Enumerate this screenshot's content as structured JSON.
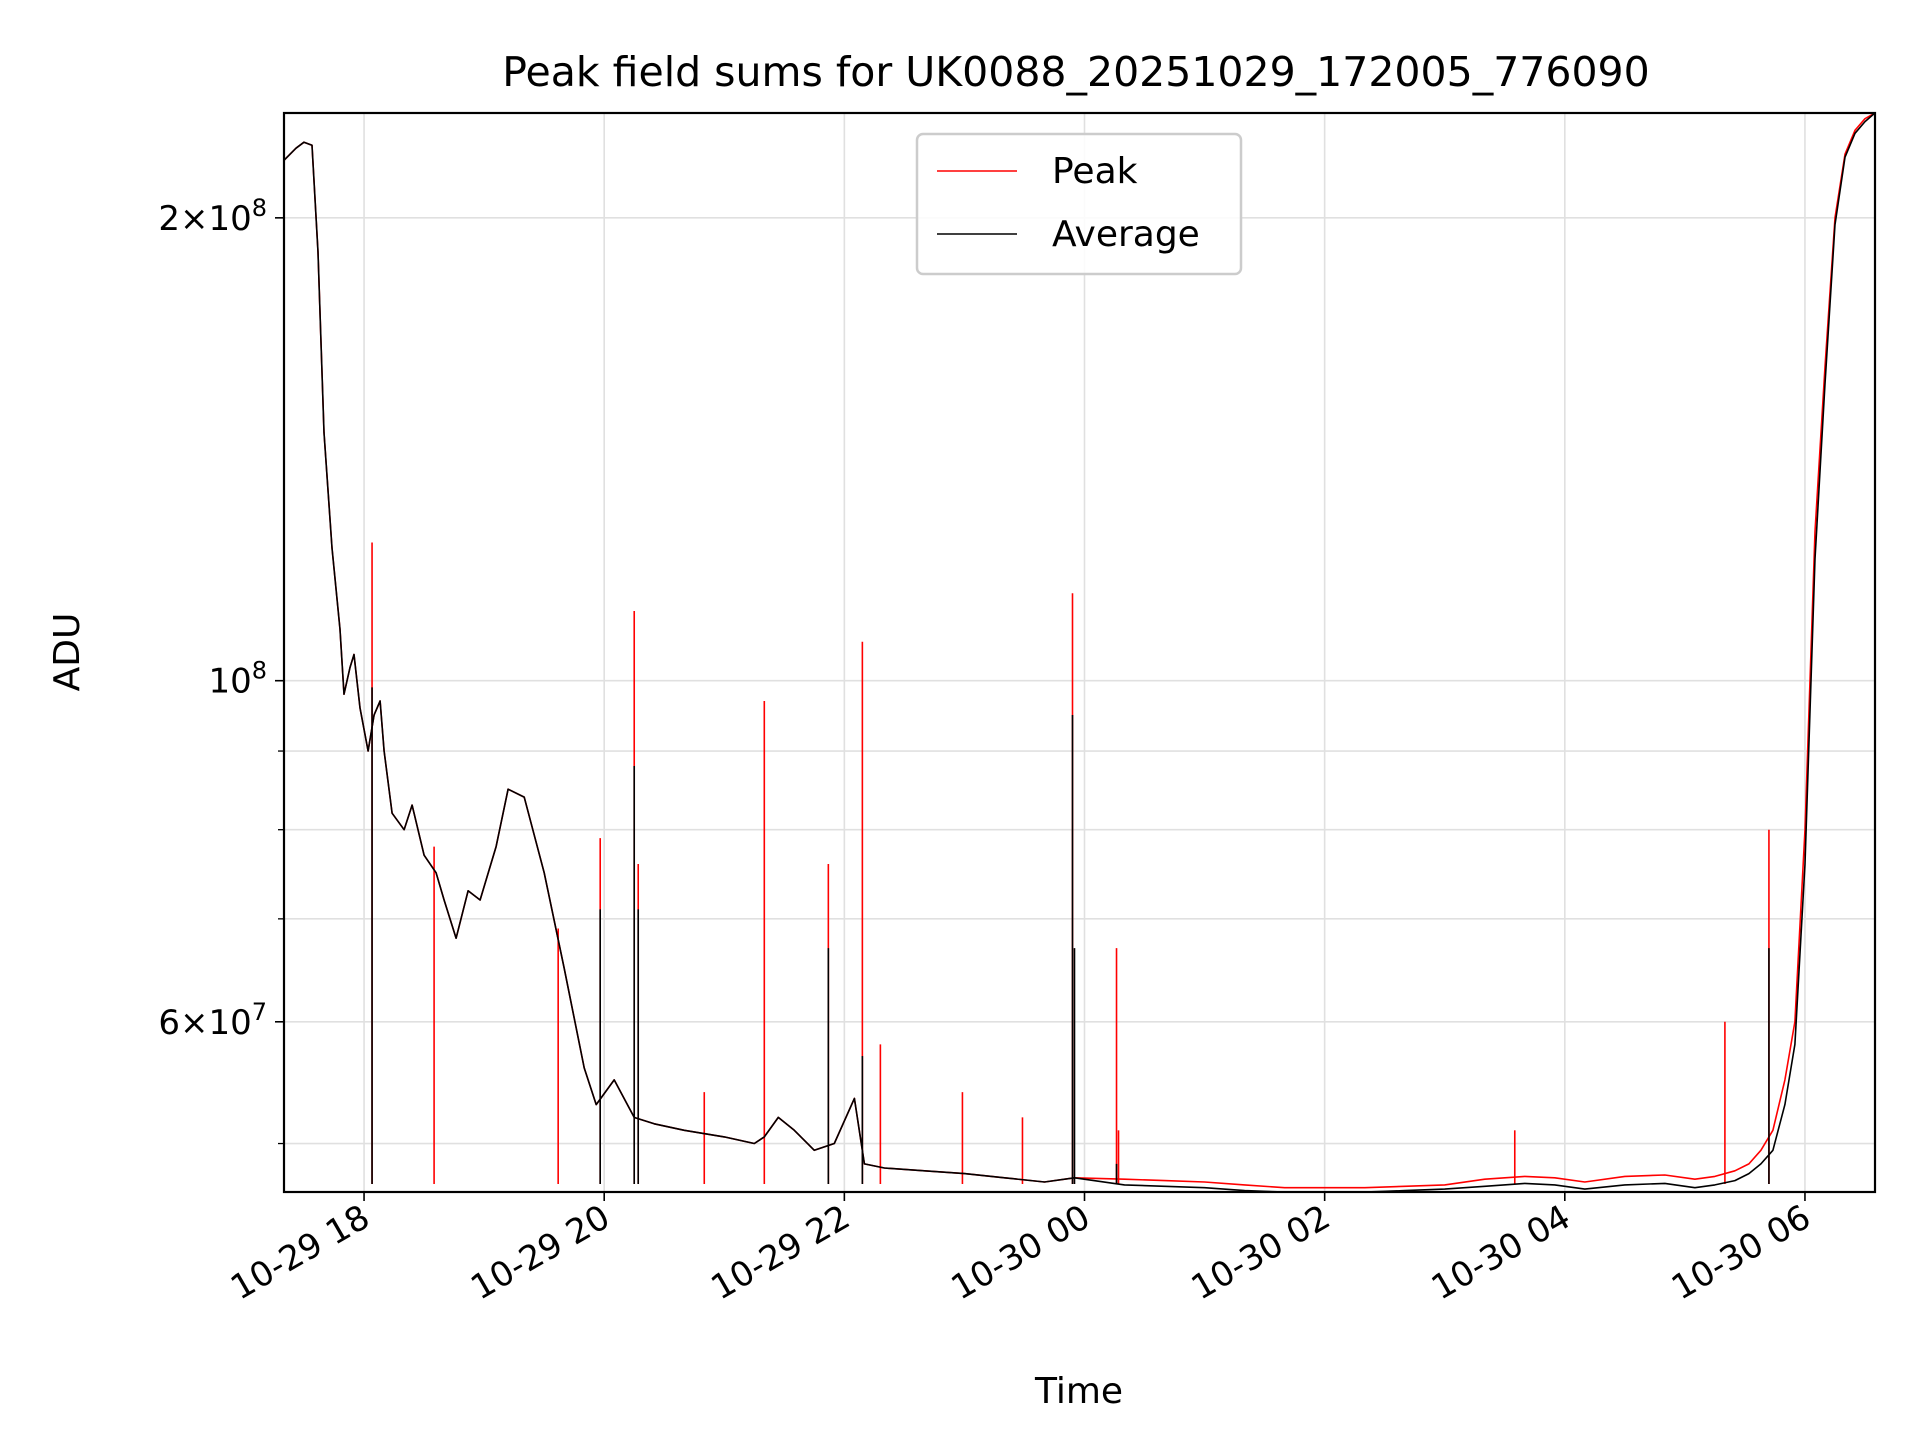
{
  "chart_data": {
    "type": "line",
    "title": "Peak field sums for UK0088_20251029_172005_776090",
    "xlabel": "Time",
    "ylabel": "ADU",
    "x_range": [
      "2025-10-29 17:20",
      "2025-10-30 06:35"
    ],
    "ylim": [
      46500000,
      234000000
    ],
    "yscale": "log",
    "grid": true,
    "legend_position": "upper center",
    "x_ticks": [
      {
        "value": "2025-10-29 18:00",
        "label": "10-29 18"
      },
      {
        "value": "2025-10-29 20:00",
        "label": "10-29 20"
      },
      {
        "value": "2025-10-29 22:00",
        "label": "10-29 22"
      },
      {
        "value": "2025-10-30 00:00",
        "label": "10-30 00"
      },
      {
        "value": "2025-10-30 02:00",
        "label": "10-30 02"
      },
      {
        "value": "2025-10-30 04:00",
        "label": "10-30 04"
      },
      {
        "value": "2025-10-30 06:00",
        "label": "10-30 06"
      }
    ],
    "y_major_ticks": [
      {
        "value": 60000000,
        "base": "6",
        "exp": "7"
      },
      {
        "value": 100000000,
        "base": "",
        "exp": "8"
      },
      {
        "value": 200000000,
        "base": "2",
        "exp": "8"
      }
    ],
    "y_minor_ticks": [
      50000000,
      70000000,
      80000000,
      90000000
    ],
    "series": [
      {
        "name": "Peak",
        "color": "#ff0000",
        "x": [
          "2025-10-29 17:20",
          "2025-10-29 17:26",
          "2025-10-29 17:30",
          "2025-10-29 17:34",
          "2025-10-29 17:37",
          "2025-10-29 17:40",
          "2025-10-29 17:44",
          "2025-10-29 17:48",
          "2025-10-29 17:50",
          "2025-10-29 17:53",
          "2025-10-29 17:55",
          "2025-10-29 17:58",
          "2025-10-29 18:02",
          "2025-10-29 18:05",
          "2025-10-29 18:08",
          "2025-10-29 18:10",
          "2025-10-29 18:14",
          "2025-10-29 18:20",
          "2025-10-29 18:24",
          "2025-10-29 18:30",
          "2025-10-29 18:36",
          "2025-10-29 18:40",
          "2025-10-29 18:46",
          "2025-10-29 18:52",
          "2025-10-29 18:58",
          "2025-10-29 19:06",
          "2025-10-29 19:12",
          "2025-10-29 19:20",
          "2025-10-29 19:30",
          "2025-10-29 19:40",
          "2025-10-29 19:50",
          "2025-10-29 19:56",
          "2025-10-29 20:05",
          "2025-10-29 20:15",
          "2025-10-29 20:25",
          "2025-10-29 20:40",
          "2025-10-29 21:00",
          "2025-10-29 21:15",
          "2025-10-29 21:20",
          "2025-10-29 21:27",
          "2025-10-29 21:35",
          "2025-10-29 21:45",
          "2025-10-29 21:55",
          "2025-10-29 22:05",
          "2025-10-29 22:10",
          "2025-10-29 22:20",
          "2025-10-29 22:40",
          "2025-10-29 23:00",
          "2025-10-29 23:20",
          "2025-10-29 23:40",
          "2025-10-29 23:55",
          "2025-10-30 00:20",
          "2025-10-30 00:40",
          "2025-10-30 01:00",
          "2025-10-30 01:20",
          "2025-10-30 01:40",
          "2025-10-30 02:00",
          "2025-10-30 02:20",
          "2025-10-30 02:40",
          "2025-10-30 03:00",
          "2025-10-30 03:20",
          "2025-10-30 03:40",
          "2025-10-30 03:55",
          "2025-10-30 04:10",
          "2025-10-30 04:30",
          "2025-10-30 04:50",
          "2025-10-30 05:05",
          "2025-10-30 05:15",
          "2025-10-30 05:25",
          "2025-10-30 05:32",
          "2025-10-30 05:38",
          "2025-10-30 05:44",
          "2025-10-30 05:50",
          "2025-10-30 05:55",
          "2025-10-30 06:00",
          "2025-10-30 06:05",
          "2025-10-30 06:10",
          "2025-10-30 06:15",
          "2025-10-30 06:20",
          "2025-10-30 06:25",
          "2025-10-30 06:30",
          "2025-10-30 06:35"
        ],
        "y": [
          218000000,
          222000000,
          224000000,
          223000000,
          190000000,
          145000000,
          122000000,
          108000000,
          98000000,
          102000000,
          104000000,
          96000000,
          90000000,
          95000000,
          97000000,
          90000000,
          82000000,
          80000000,
          83000000,
          77000000,
          75000000,
          72000000,
          68000000,
          73000000,
          72000000,
          78000000,
          85000000,
          84000000,
          75000000,
          65000000,
          56000000,
          53000000,
          55000000,
          52000000,
          51500000,
          51000000,
          50500000,
          50000000,
          50500000,
          52000000,
          51000000,
          49500000,
          50000000,
          53500000,
          48500000,
          48200000,
          48000000,
          47800000,
          47500000,
          47200000,
          47500000,
          47400000,
          47300000,
          47200000,
          47000000,
          46800000,
          46800000,
          46800000,
          46900000,
          47000000,
          47400000,
          47600000,
          47500000,
          47200000,
          47600000,
          47700000,
          47400000,
          47600000,
          48000000,
          48500000,
          49500000,
          51000000,
          55000000,
          60000000,
          80000000,
          125000000,
          160000000,
          200000000,
          220000000,
          228000000,
          232000000,
          234000000
        ],
        "spikes": [
          {
            "x": "2025-10-29 18:04",
            "y": 123000000
          },
          {
            "x": "2025-10-29 18:35",
            "y": 78000000
          },
          {
            "x": "2025-10-29 19:37",
            "y": 69000000
          },
          {
            "x": "2025-10-29 19:58",
            "y": 79000000
          },
          {
            "x": "2025-10-29 20:15",
            "y": 111000000
          },
          {
            "x": "2025-10-29 20:17",
            "y": 76000000
          },
          {
            "x": "2025-10-29 20:50",
            "y": 54000000
          },
          {
            "x": "2025-10-29 21:20",
            "y": 97000000
          },
          {
            "x": "2025-10-29 21:52",
            "y": 76000000
          },
          {
            "x": "2025-10-29 22:09",
            "y": 106000000
          },
          {
            "x": "2025-10-29 22:18",
            "y": 58000000
          },
          {
            "x": "2025-10-29 22:59",
            "y": 54000000
          },
          {
            "x": "2025-10-29 23:29",
            "y": 52000000
          },
          {
            "x": "2025-10-29 23:54",
            "y": 114000000
          },
          {
            "x": "2025-10-30 00:16",
            "y": 67000000
          },
          {
            "x": "2025-10-30 00:17",
            "y": 51000000
          },
          {
            "x": "2025-10-30 03:35",
            "y": 51000000
          },
          {
            "x": "2025-10-30 05:20",
            "y": 60000000
          },
          {
            "x": "2025-10-30 05:42",
            "y": 80000000
          }
        ]
      },
      {
        "name": "Average",
        "color": "#000000",
        "x": [
          "2025-10-29 17:20",
          "2025-10-29 17:26",
          "2025-10-29 17:30",
          "2025-10-29 17:34",
          "2025-10-29 17:37",
          "2025-10-29 17:40",
          "2025-10-29 17:44",
          "2025-10-29 17:48",
          "2025-10-29 17:50",
          "2025-10-29 17:53",
          "2025-10-29 17:55",
          "2025-10-29 17:58",
          "2025-10-29 18:02",
          "2025-10-29 18:05",
          "2025-10-29 18:08",
          "2025-10-29 18:10",
          "2025-10-29 18:14",
          "2025-10-29 18:20",
          "2025-10-29 18:24",
          "2025-10-29 18:30",
          "2025-10-29 18:36",
          "2025-10-29 18:40",
          "2025-10-29 18:46",
          "2025-10-29 18:52",
          "2025-10-29 18:58",
          "2025-10-29 19:06",
          "2025-10-29 19:12",
          "2025-10-29 19:20",
          "2025-10-29 19:30",
          "2025-10-29 19:40",
          "2025-10-29 19:50",
          "2025-10-29 19:56",
          "2025-10-29 20:05",
          "2025-10-29 20:15",
          "2025-10-29 20:25",
          "2025-10-29 20:40",
          "2025-10-29 21:00",
          "2025-10-29 21:15",
          "2025-10-29 21:20",
          "2025-10-29 21:27",
          "2025-10-29 21:35",
          "2025-10-29 21:45",
          "2025-10-29 21:55",
          "2025-10-29 22:05",
          "2025-10-29 22:10",
          "2025-10-29 22:20",
          "2025-10-29 22:40",
          "2025-10-29 23:00",
          "2025-10-29 23:20",
          "2025-10-29 23:40",
          "2025-10-29 23:55",
          "2025-10-30 00:20",
          "2025-10-30 00:40",
          "2025-10-30 01:00",
          "2025-10-30 01:20",
          "2025-10-30 01:40",
          "2025-10-30 02:00",
          "2025-10-30 02:20",
          "2025-10-30 02:40",
          "2025-10-30 03:00",
          "2025-10-30 03:20",
          "2025-10-30 03:40",
          "2025-10-30 03:55",
          "2025-10-30 04:10",
          "2025-10-30 04:30",
          "2025-10-30 04:50",
          "2025-10-30 05:05",
          "2025-10-30 05:15",
          "2025-10-30 05:25",
          "2025-10-30 05:32",
          "2025-10-30 05:38",
          "2025-10-30 05:44",
          "2025-10-30 05:50",
          "2025-10-30 05:55",
          "2025-10-30 06:00",
          "2025-10-30 06:05",
          "2025-10-30 06:10",
          "2025-10-30 06:15",
          "2025-10-30 06:20",
          "2025-10-30 06:25",
          "2025-10-30 06:30",
          "2025-10-30 06:35"
        ],
        "y": [
          218000000,
          222000000,
          224000000,
          223000000,
          190000000,
          145000000,
          122000000,
          108000000,
          98000000,
          102000000,
          104000000,
          96000000,
          90000000,
          95000000,
          97000000,
          90000000,
          82000000,
          80000000,
          83000000,
          77000000,
          75000000,
          72000000,
          68000000,
          73000000,
          72000000,
          78000000,
          85000000,
          84000000,
          75000000,
          65000000,
          56000000,
          53000000,
          55000000,
          52000000,
          51500000,
          51000000,
          50500000,
          50000000,
          50500000,
          52000000,
          51000000,
          49500000,
          50000000,
          53500000,
          48500000,
          48200000,
          48000000,
          47800000,
          47500000,
          47200000,
          47500000,
          47000000,
          46900000,
          46800000,
          46600000,
          46500000,
          46500000,
          46500000,
          46600000,
          46700000,
          46900000,
          47100000,
          47000000,
          46700000,
          47000000,
          47100000,
          46800000,
          47000000,
          47300000,
          47800000,
          48500000,
          49500000,
          53000000,
          58000000,
          76000000,
          120000000,
          156000000,
          198000000,
          219000000,
          227000000,
          231000000,
          234000000
        ],
        "spikes": [
          {
            "x": "2025-10-29 18:04",
            "y": 99000000
          },
          {
            "x": "2025-10-29 19:58",
            "y": 71000000
          },
          {
            "x": "2025-10-29 20:15",
            "y": 88000000
          },
          {
            "x": "2025-10-29 20:17",
            "y": 71000000
          },
          {
            "x": "2025-10-29 21:52",
            "y": 67000000
          },
          {
            "x": "2025-10-29 22:09",
            "y": 57000000
          },
          {
            "x": "2025-10-29 23:54",
            "y": 95000000
          },
          {
            "x": "2025-10-29 23:55",
            "y": 67000000
          },
          {
            "x": "2025-10-30 00:16",
            "y": 48500000
          },
          {
            "x": "2025-10-30 05:42",
            "y": 67000000
          }
        ]
      }
    ]
  }
}
